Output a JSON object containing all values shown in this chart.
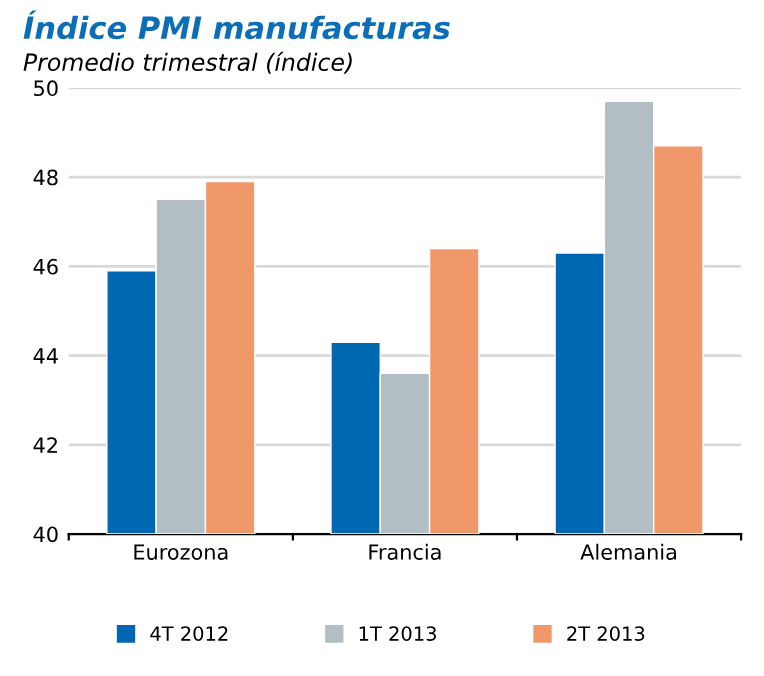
{
  "chart_data": {
    "type": "bar",
    "title": "Índice PMI manufacturas",
    "subtitle": "Promedio trimestral (índice)",
    "categories": [
      "Eurozona",
      "Francia",
      "Alemania"
    ],
    "series": [
      {
        "name": "4T 2012",
        "color": "#0068b3",
        "values": [
          45.9,
          44.3,
          46.3
        ]
      },
      {
        "name": "1T 2013",
        "color": "#b3bec4",
        "values": [
          47.5,
          43.6,
          49.7
        ]
      },
      {
        "name": "2T 2013",
        "color": "#f0986a",
        "values": [
          47.9,
          46.4,
          48.7
        ]
      }
    ],
    "ylim": [
      40,
      50
    ],
    "yticks": [
      40,
      42,
      44,
      46,
      48,
      50
    ],
    "grid": "y",
    "legend": "bottom"
  }
}
